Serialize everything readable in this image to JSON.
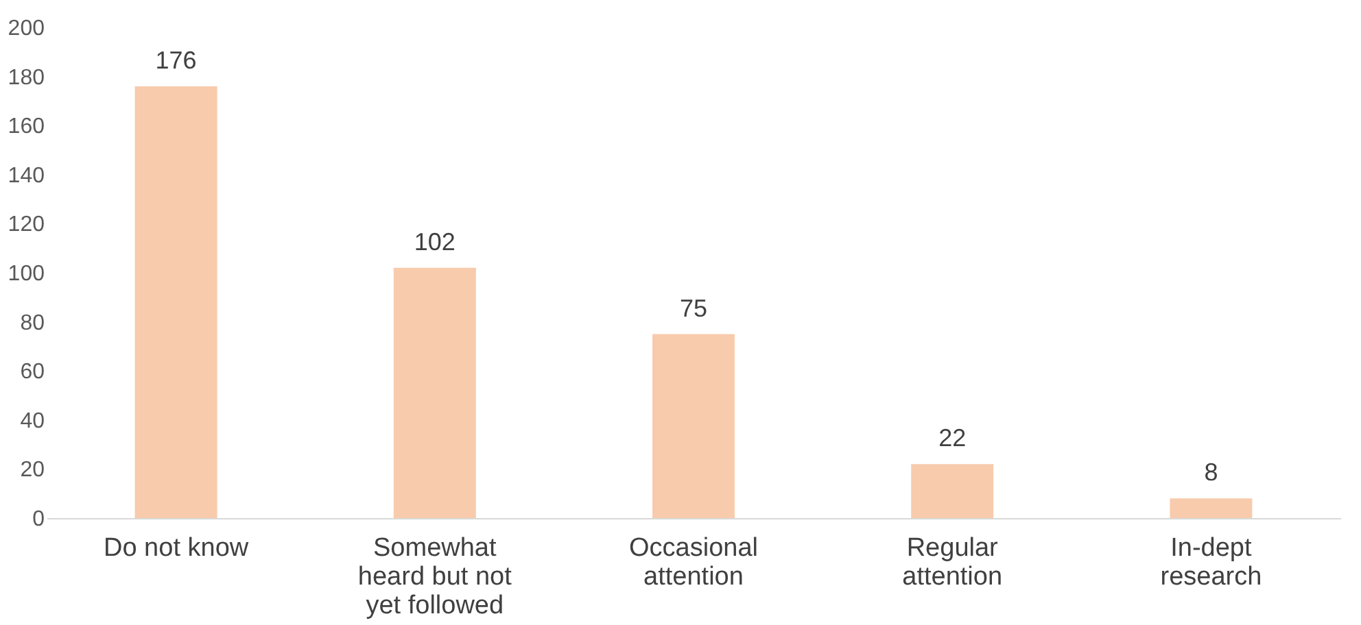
{
  "chart_data": {
    "type": "bar",
    "categories": [
      "Do not know",
      "Somewhat heard but not yet followed",
      "Occasional attention",
      "Regular attention",
      "In-dept research"
    ],
    "values": [
      176,
      102,
      75,
      22,
      8
    ],
    "color": "#f8cbad",
    "ylim": [
      0,
      200
    ],
    "yticks": [
      0,
      20,
      40,
      60,
      80,
      100,
      120,
      140,
      160,
      180,
      200
    ],
    "grid": false,
    "data_labels": true
  }
}
